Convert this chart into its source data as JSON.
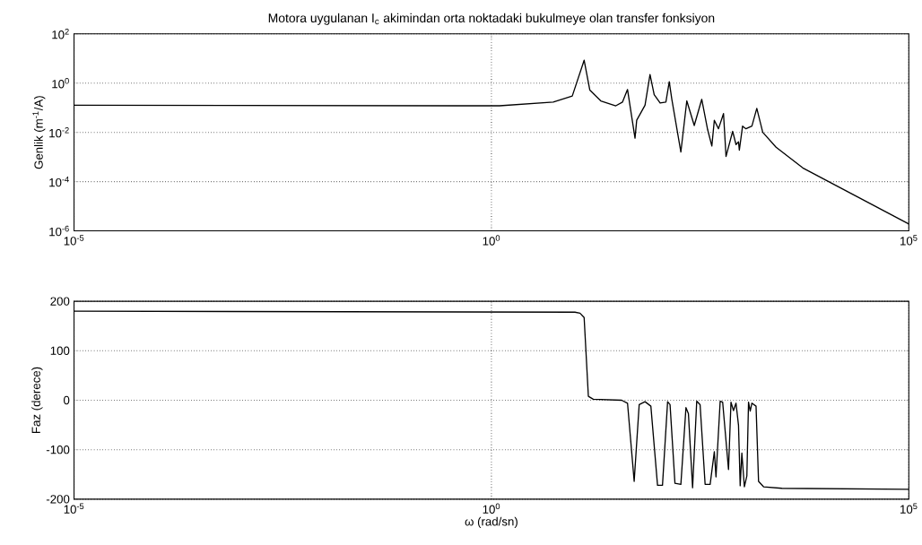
{
  "chart_data": [
    {
      "type": "line",
      "title": "Motora uygulanan I$_{c}$ akimindan orta noktadaki bukulmeye olan transfer fonksiyon",
      "ylabel": "Genlik (m$^{-1}$/A)",
      "log": "xy",
      "grid": true,
      "xlim": [
        1e-05,
        100000
      ],
      "ylim": [
        1e-06,
        100
      ],
      "xticks": [
        {
          "value": 1e-05,
          "label": "10$^{-5}$"
        },
        {
          "value": 1,
          "label": "10$^{0}$"
        },
        {
          "value": 100000,
          "label": "10$^{5}$"
        }
      ],
      "yticks": [
        {
          "value": 1e-06,
          "label": "10$^{-6}$"
        },
        {
          "value": 0.0001,
          "label": "10$^{-4}$"
        },
        {
          "value": 0.01,
          "label": "10$^{-2}$"
        },
        {
          "value": 1,
          "label": "10$^{0}$"
        },
        {
          "value": 100,
          "label": "10$^{2}$"
        }
      ],
      "series": [
        {
          "color": "#000000",
          "x": [
            1e-05,
            1.25,
            5.5,
            9.3,
            12.9,
            15.1,
            20.4,
            30.9,
            37.2,
            42.7,
            52.5,
            55.0,
            69.2,
            79.4,
            89.1,
            105,
            123,
            135,
            145,
            186,
            219,
            269,
            331,
            389,
            437,
            468,
            525,
            603,
            646,
            776,
            851,
            912,
            933,
            1020,
            1120,
            1320,
            1510,
            1780,
            2570,
            5370,
            100000
          ],
          "values": [
            0.126,
            0.12,
            0.17,
            0.3,
            8.5,
            0.52,
            0.19,
            0.12,
            0.17,
            0.55,
            0.0058,
            0.031,
            0.126,
            2.24,
            0.34,
            0.155,
            0.17,
            1.15,
            0.22,
            0.0016,
            0.19,
            0.019,
            0.22,
            0.013,
            0.0028,
            0.031,
            0.014,
            0.058,
            0.00105,
            0.011,
            0.0032,
            0.0041,
            0.0019,
            0.018,
            0.014,
            0.018,
            0.095,
            0.01,
            0.0025,
            0.00036,
            1.9e-06
          ]
        }
      ]
    },
    {
      "type": "line",
      "ylabel": "Faz (derece)",
      "xlabel": "ω (rad/sn)",
      "log": "x",
      "grid": true,
      "xlim": [
        1e-05,
        100000
      ],
      "ylim": [
        -200,
        200
      ],
      "xticks": [
        {
          "value": 1e-05,
          "label": "10$^{-5}$"
        },
        {
          "value": 1,
          "label": "10$^{0}$"
        },
        {
          "value": 100000,
          "label": "10$^{5}$"
        }
      ],
      "yticks": [
        -200,
        -100,
        0,
        100,
        200
      ],
      "series": [
        {
          "color": "#000000",
          "x": [
            1e-05,
            10,
            11.5,
            12.9,
            14.5,
            16.6,
            36.3,
            42.7,
            51.3,
            58.9,
            69.2,
            81.3,
            97.7,
            112,
            129,
            138,
            158,
            186,
            214,
            229,
            257,
            288,
            316,
            363,
            417,
            468,
            490,
            550,
            589,
            692,
            741,
            794,
            851,
            912,
            955,
            1000,
            1072,
            1148,
            1202,
            1259,
            1318,
            1479,
            1585,
            1820,
            3020,
            100000
          ],
          "values": [
            180,
            178,
            176,
            167,
            8,
            2,
            0,
            -6,
            -164,
            -9,
            -3,
            -12,
            -172,
            -172,
            -3,
            -9,
            -168,
            -170,
            -15,
            -27,
            -177,
            -2,
            -9,
            -170,
            -170,
            -104,
            -155,
            -2,
            -4,
            -140,
            -4,
            -21,
            -6,
            -51,
            -173,
            -107,
            -175,
            -153,
            -4,
            -22,
            -6,
            -12,
            -164,
            -175,
            -178,
            -180
          ]
        }
      ]
    }
  ]
}
